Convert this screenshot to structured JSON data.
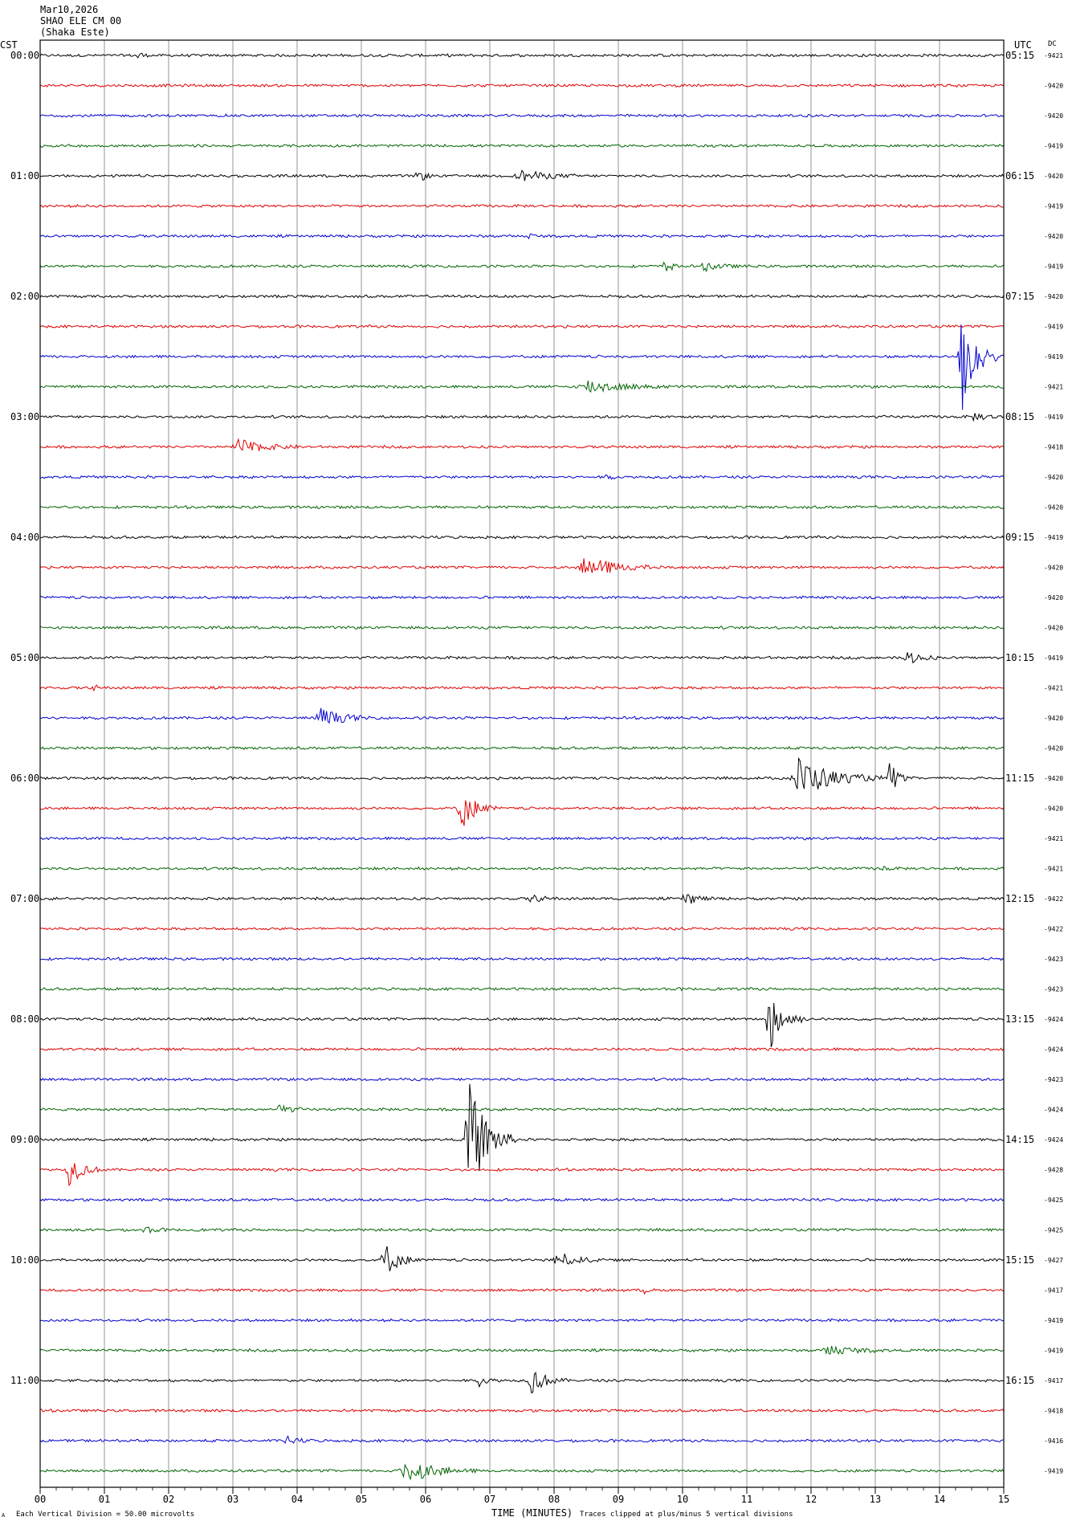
{
  "header": {
    "date": "Mar10,2026",
    "station": "SHAO ELE CM 00",
    "location": "(Shaka Este)"
  },
  "left_zone": "CST",
  "right_zone": "UTC",
  "dc_label": "DC",
  "footer": {
    "corner_mark": "A",
    "scale_note": "Each Vertical Division =   50.00 microvolts",
    "x_label": "TIME (MINUTES)",
    "clip_note": "Traces clipped at plus/minus 5 vertical divisions"
  },
  "chart_data": {
    "type": "line",
    "title": "",
    "xlabel": "TIME (MINUTES)",
    "ylabel": "",
    "xlim": [
      0,
      15
    ],
    "x_ticks": [
      "00",
      "01",
      "02",
      "03",
      "04",
      "05",
      "06",
      "07",
      "08",
      "09",
      "10",
      "11",
      "12",
      "13",
      "14",
      "15"
    ],
    "grid": true,
    "trace_colors": [
      "#000000",
      "#e00000",
      "#0000d0",
      "#006400"
    ],
    "left_hour_labels": [
      "00:00",
      "01:00",
      "02:00",
      "03:00",
      "04:00",
      "05:00",
      "06:00",
      "07:00",
      "08:00",
      "09:00",
      "10:00",
      "11:00"
    ],
    "right_hour_labels": [
      "05:15",
      "06:15",
      "07:15",
      "08:15",
      "09:15",
      "10:15",
      "11:15",
      "12:15",
      "13:15",
      "14:15",
      "15:15",
      "16:15"
    ],
    "dc_values": [
      "-9421",
      "-9420",
      "-9420",
      "-9419",
      "-9420",
      "-9419",
      "-9420",
      "-9419",
      "-9420",
      "-9419",
      "-9419",
      "-9421",
      "-9419",
      "-9418",
      "-9420",
      "-9420",
      "-9419",
      "-9420",
      "-9420",
      "-9420",
      "-9419",
      "-9421",
      "-9420",
      "-9420",
      "-9420",
      "-9420",
      "-9421",
      "-9421",
      "-9422",
      "-9422",
      "-9423",
      "-9423",
      "-9424",
      "-9424",
      "-9423",
      "-9424",
      "-9424",
      "-9428",
      "-9425",
      "-9425",
      "-9427",
      "-9417",
      "-9419",
      "-9419",
      "-9417",
      "-9418",
      "-9416",
      "-9419"
    ],
    "events": [
      {
        "trace": 0,
        "minute": 1.5,
        "amplitude": 0.5,
        "duration": 0.2
      },
      {
        "trace": 4,
        "minute": 5.85,
        "amplitude": 0.6,
        "duration": 0.3
      },
      {
        "trace": 4,
        "minute": 7.4,
        "amplitude": 0.45,
        "duration": 1.1
      },
      {
        "trace": 6,
        "minute": 7.6,
        "amplitude": 0.25,
        "duration": 0.2
      },
      {
        "trace": 7,
        "minute": 9.7,
        "amplitude": 0.6,
        "duration": 0.3
      },
      {
        "trace": 7,
        "minute": 10.3,
        "amplitude": 0.35,
        "duration": 0.7
      },
      {
        "trace": 10,
        "minute": 14.3,
        "amplitude": 5,
        "duration": 0.6
      },
      {
        "trace": 11,
        "minute": 8.4,
        "amplitude": 0.55,
        "duration": 1.5
      },
      {
        "trace": 12,
        "minute": 14.5,
        "amplitude": 0.3,
        "duration": 0.6
      },
      {
        "trace": 13,
        "minute": 3.0,
        "amplitude": 0.6,
        "duration": 1.1
      },
      {
        "trace": 14,
        "minute": 8.8,
        "amplitude": 0.25,
        "duration": 0.2
      },
      {
        "trace": 17,
        "minute": 8.4,
        "amplitude": 0.9,
        "duration": 1.3
      },
      {
        "trace": 20,
        "minute": 13.4,
        "amplitude": 0.7,
        "duration": 0.6
      },
      {
        "trace": 21,
        "minute": 0.8,
        "amplitude": 0.3,
        "duration": 0.2
      },
      {
        "trace": 22,
        "minute": 4.3,
        "amplitude": 0.8,
        "duration": 0.9
      },
      {
        "trace": 24,
        "minute": 11.7,
        "amplitude": 1.7,
        "duration": 1.4
      },
      {
        "trace": 24,
        "minute": 13.2,
        "amplitude": 1.7,
        "duration": 0.3
      },
      {
        "trace": 25,
        "minute": 6.5,
        "amplitude": 1.8,
        "duration": 0.6
      },
      {
        "trace": 27,
        "minute": 13.1,
        "amplitude": 0.3,
        "duration": 0.2
      },
      {
        "trace": 28,
        "minute": 7.6,
        "amplitude": 0.3,
        "duration": 0.5
      },
      {
        "trace": 28,
        "minute": 10.0,
        "amplitude": 0.6,
        "duration": 0.5
      },
      {
        "trace": 32,
        "minute": 11.3,
        "amplitude": 2.8,
        "duration": 0.6
      },
      {
        "trace": 35,
        "minute": 3.7,
        "amplitude": 0.5,
        "duration": 0.4
      },
      {
        "trace": 36,
        "minute": 6.6,
        "amplitude": 5,
        "duration": 0.8
      },
      {
        "trace": 37,
        "minute": 0.4,
        "amplitude": 1.2,
        "duration": 0.6
      },
      {
        "trace": 39,
        "minute": 1.6,
        "amplitude": 0.3,
        "duration": 0.4
      },
      {
        "trace": 40,
        "minute": 5.3,
        "amplitude": 1.5,
        "duration": 0.6
      },
      {
        "trace": 40,
        "minute": 8.0,
        "amplitude": 0.6,
        "duration": 0.8
      },
      {
        "trace": 41,
        "minute": 9.4,
        "amplitude": 0.5,
        "duration": 0.1
      },
      {
        "trace": 43,
        "minute": 12.2,
        "amplitude": 0.4,
        "duration": 1.1
      },
      {
        "trace": 44,
        "minute": 6.8,
        "amplitude": 0.4,
        "duration": 0.4
      },
      {
        "trace": 44,
        "minute": 7.6,
        "amplitude": 1.1,
        "duration": 0.6
      },
      {
        "trace": 46,
        "minute": 3.8,
        "amplitude": 0.3,
        "duration": 0.5
      },
      {
        "trace": 47,
        "minute": 5.6,
        "amplitude": 1.0,
        "duration": 1.2
      }
    ]
  }
}
